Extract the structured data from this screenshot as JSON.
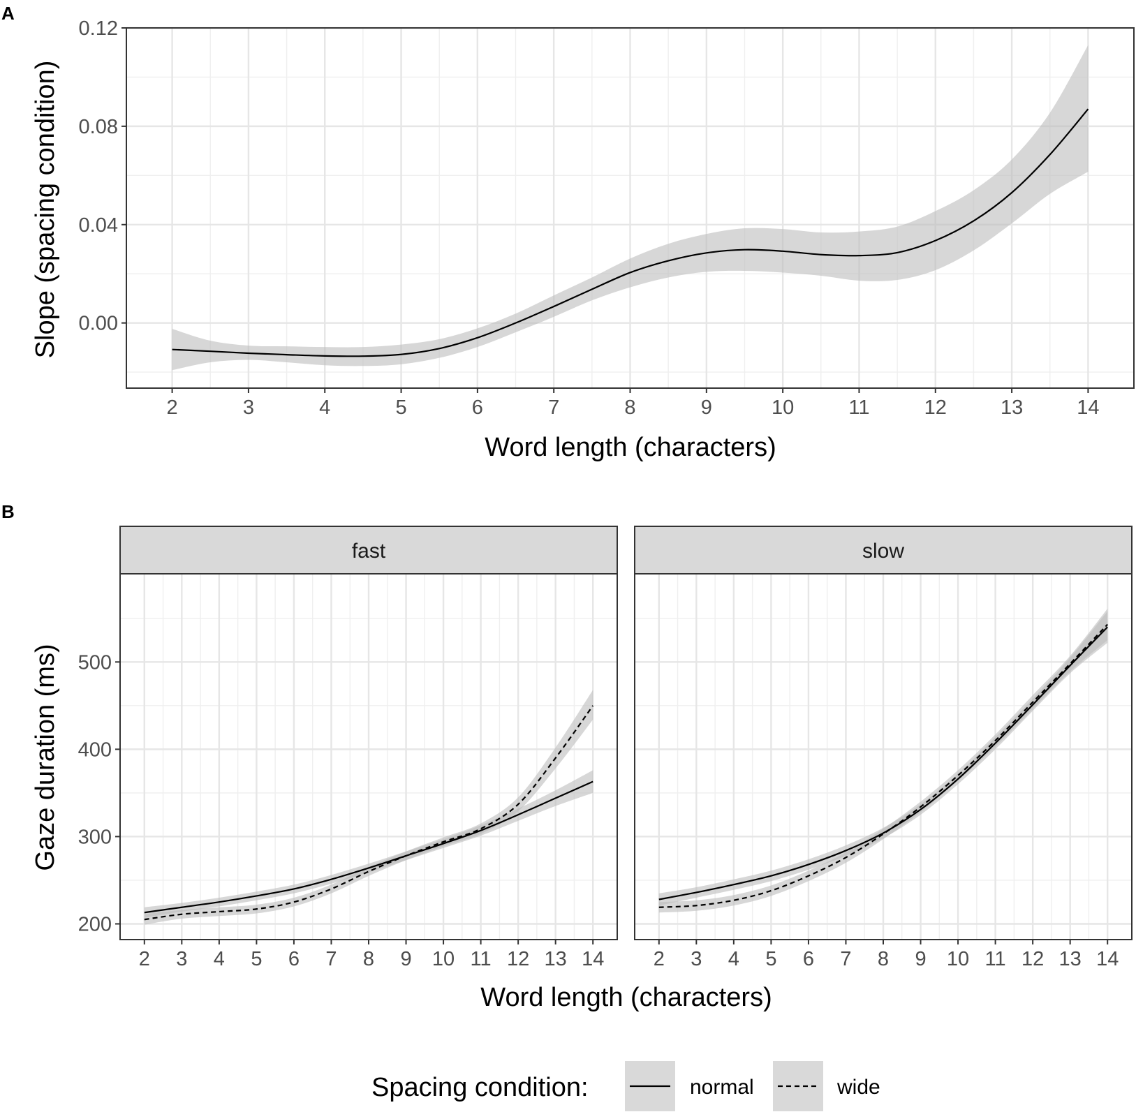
{
  "chart_data": [
    {
      "panel_label": "A",
      "type": "line",
      "title": "",
      "xlabel": "Word length (characters)",
      "ylabel": "Slope (spacing condition)",
      "xlim": [
        1.4,
        14.6
      ],
      "ylim": [
        -0.0265,
        0.12
      ],
      "x_ticks": [
        2,
        3,
        4,
        5,
        6,
        7,
        8,
        9,
        10,
        11,
        12,
        13,
        14
      ],
      "y_ticks": [
        0.0,
        0.04,
        0.08,
        0.12
      ],
      "y_tick_labels": [
        "0.00",
        "0.04",
        "0.08",
        "0.12"
      ],
      "grid": true,
      "series": [
        {
          "name": "slope",
          "linetype": "solid",
          "x": [
            2,
            2.5,
            3,
            3.5,
            4,
            4.5,
            5,
            5.5,
            6,
            6.5,
            7,
            7.5,
            8,
            8.5,
            9,
            9.5,
            10,
            10.5,
            11,
            11.5,
            12,
            12.5,
            13,
            13.5,
            14
          ],
          "y": [
            -0.0108,
            -0.0115,
            -0.0123,
            -0.0129,
            -0.0134,
            -0.0135,
            -0.0128,
            -0.0104,
            -0.006,
            0.0,
            0.0067,
            0.0137,
            0.0205,
            0.0253,
            0.0285,
            0.0298,
            0.0292,
            0.0278,
            0.0274,
            0.0286,
            0.0335,
            0.0415,
            0.053,
            0.0685,
            0.087
          ],
          "ci_lower": [
            -0.0192,
            -0.016,
            -0.015,
            -0.016,
            -0.0172,
            -0.0175,
            -0.0168,
            -0.0142,
            -0.0098,
            -0.0038,
            0.0025,
            0.0092,
            0.0145,
            0.0185,
            0.0208,
            0.0212,
            0.0205,
            0.0192,
            0.0172,
            0.0175,
            0.0215,
            0.0295,
            0.0405,
            0.0525,
            0.0615
          ],
          "ci_upper": [
            -0.0024,
            -0.0072,
            -0.0092,
            -0.0095,
            -0.0098,
            -0.0098,
            -0.0088,
            -0.0066,
            -0.0022,
            0.0038,
            0.0112,
            0.0185,
            0.0262,
            0.0322,
            0.0362,
            0.0385,
            0.0382,
            0.0368,
            0.0372,
            0.0392,
            0.0455,
            0.054,
            0.0665,
            0.0855,
            0.113
          ]
        }
      ]
    },
    {
      "panel_label": "B",
      "type": "line",
      "xlabel": "Word length (characters)",
      "ylabel": "Gaze duration (ms)",
      "ylim": [
        182,
        601
      ],
      "y_ticks": [
        200,
        300,
        400,
        500
      ],
      "x_ticks": [
        2,
        3,
        4,
        5,
        6,
        7,
        8,
        9,
        10,
        11,
        12,
        13,
        14
      ],
      "grid": true,
      "legend": {
        "title": "Spacing condition:",
        "position": "bottom",
        "entries": [
          {
            "label": "normal",
            "linetype": "solid"
          },
          {
            "label": "wide",
            "linetype": "dashed"
          }
        ]
      },
      "facets": [
        {
          "strip": "fast",
          "xlim": [
            1.35,
            14.65
          ],
          "series": [
            {
              "name": "normal",
              "linetype": "solid",
              "x": [
                2,
                3,
                4,
                5,
                6,
                7,
                8,
                9,
                10,
                11,
                12,
                13,
                14
              ],
              "y": [
                213,
                219,
                225,
                232,
                240,
                251,
                264,
                278,
                292,
                307,
                325,
                344,
                363
              ],
              "ci_lower": [
                207,
                214,
                220,
                227,
                235,
                246,
                259,
                273,
                287,
                301,
                318,
                335,
                350
              ],
              "ci_upper": [
                219,
                224,
                230,
                237,
                245,
                256,
                269,
                283,
                297,
                313,
                332,
                353,
                376
              ]
            },
            {
              "name": "wide",
              "linetype": "dashed",
              "x": [
                2,
                3,
                4,
                5,
                6,
                7,
                8,
                9,
                10,
                11,
                12,
                13,
                14
              ],
              "y": [
                205,
                211,
                214,
                217,
                225,
                240,
                260,
                278,
                294,
                309,
                337,
                390,
                450
              ],
              "ci_lower": [
                199,
                206,
                209,
                212,
                220,
                235,
                255,
                273,
                289,
                303,
                329,
                378,
                434
              ],
              "ci_upper": [
                211,
                216,
                219,
                222,
                230,
                245,
                265,
                283,
                299,
                315,
                345,
                402,
                468
              ]
            }
          ]
        },
        {
          "strip": "slow",
          "xlim": [
            1.35,
            14.65
          ],
          "series": [
            {
              "name": "normal",
              "linetype": "solid",
              "x": [
                2,
                3,
                4,
                5,
                6,
                7,
                8,
                9,
                10,
                11,
                12,
                13,
                14
              ],
              "y": [
                228,
                236,
                245,
                255,
                268,
                284,
                304,
                331,
                366,
                407,
                451,
                496,
                540
              ],
              "ci_lower": [
                221,
                230,
                239,
                249,
                262,
                278,
                298,
                325,
                360,
                400,
                444,
                487,
                522
              ],
              "ci_upper": [
                235,
                242,
                251,
                261,
                274,
                290,
                310,
                337,
                372,
                414,
                458,
                505,
                558
              ]
            },
            {
              "name": "wide",
              "linetype": "dashed",
              "x": [
                2,
                3,
                4,
                5,
                6,
                7,
                8,
                9,
                10,
                11,
                12,
                13,
                14
              ],
              "y": [
                219,
                221,
                227,
                238,
                255,
                276,
                303,
                334,
                370,
                410,
                454,
                498,
                543
              ],
              "ci_lower": [
                213,
                215,
                221,
                232,
                249,
                270,
                297,
                328,
                364,
                403,
                446,
                489,
                525
              ],
              "ci_upper": [
                225,
                227,
                233,
                244,
                261,
                282,
                309,
                340,
                376,
                417,
                462,
                507,
                561
              ]
            }
          ]
        }
      ]
    }
  ]
}
